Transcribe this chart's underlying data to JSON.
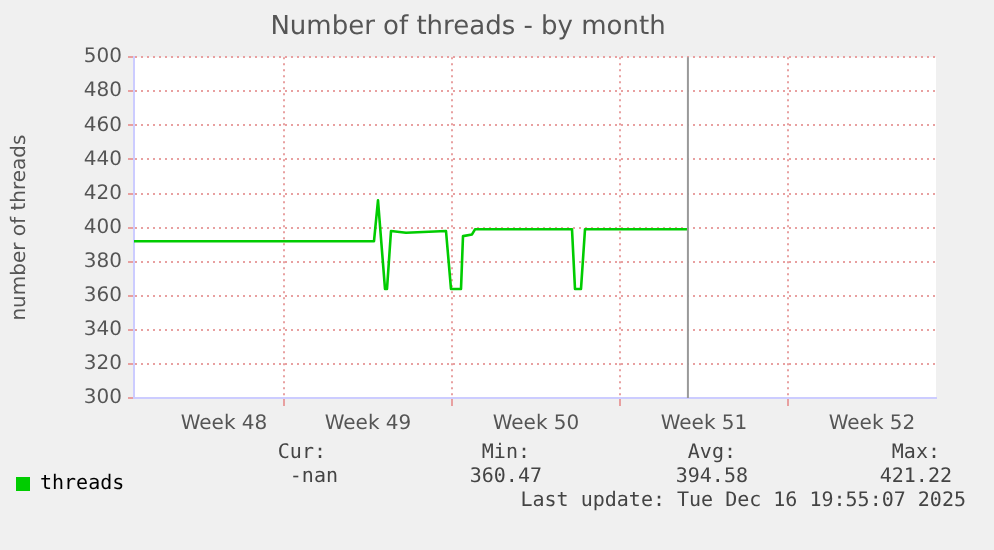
{
  "chart_data": {
    "type": "line",
    "title": "Number of threads - by month",
    "ylabel": "number of threads",
    "x": [
      "2025-11-23T18:00",
      "2025-12-03T18:00",
      "2025-12-03T22:00",
      "2025-12-04T05:00",
      "2025-12-04T07:00",
      "2025-12-04T11:00",
      "2025-12-05T02:00",
      "2025-12-06T18:00",
      "2025-12-06T23:00",
      "2025-12-07T09:00",
      "2025-12-07T11:00",
      "2025-12-07T20:00",
      "2025-12-07T23:00",
      "2025-12-12T00:00",
      "2025-12-12T03:00",
      "2025-12-12T09:00",
      "2025-12-12T13:00",
      "2025-12-16T19:00"
    ],
    "series": [
      {
        "name": "threads",
        "color": "#00cc00",
        "values": [
          392,
          392,
          416,
          364,
          364,
          398,
          397,
          398,
          364,
          364,
          395,
          396,
          399,
          399,
          364,
          364,
          399,
          399
        ]
      }
    ],
    "xlim": [
      "2025-11-23T18:00",
      "2025-12-27T04:00"
    ],
    "xticks": [
      {
        "value": "2025-11-27T12:00",
        "label": "Week 48"
      },
      {
        "value": "2025-11-30",
        "label": null
      },
      {
        "value": "2025-12-03T12:00",
        "label": "Week 49"
      },
      {
        "value": "2025-12-07",
        "label": null
      },
      {
        "value": "2025-12-10T12:00",
        "label": "Week 50"
      },
      {
        "value": "2025-12-14",
        "label": null
      },
      {
        "value": "2025-12-17T12:00",
        "label": "Week 51"
      },
      {
        "value": "2025-12-21",
        "label": null
      },
      {
        "value": "2025-12-24T12:00",
        "label": "Week 52"
      }
    ],
    "ylim": [
      300,
      500
    ],
    "yticks": [
      300,
      320,
      340,
      360,
      380,
      400,
      420,
      440,
      460,
      480,
      500
    ],
    "ref_lines": [
      {
        "axis": "x",
        "value": "2025-12-16T19:55",
        "color": "#999999"
      }
    ],
    "grid": true,
    "legend": "bottom left",
    "marker": "none",
    "line_style": "solid",
    "annotations": [
      "Cur:",
      "-nan",
      "Min:",
      "360.47",
      "Avg:",
      "394.58",
      "Max:",
      "421.22",
      "Last update: Tue Dec 16 19:55:07 2025"
    ]
  }
}
